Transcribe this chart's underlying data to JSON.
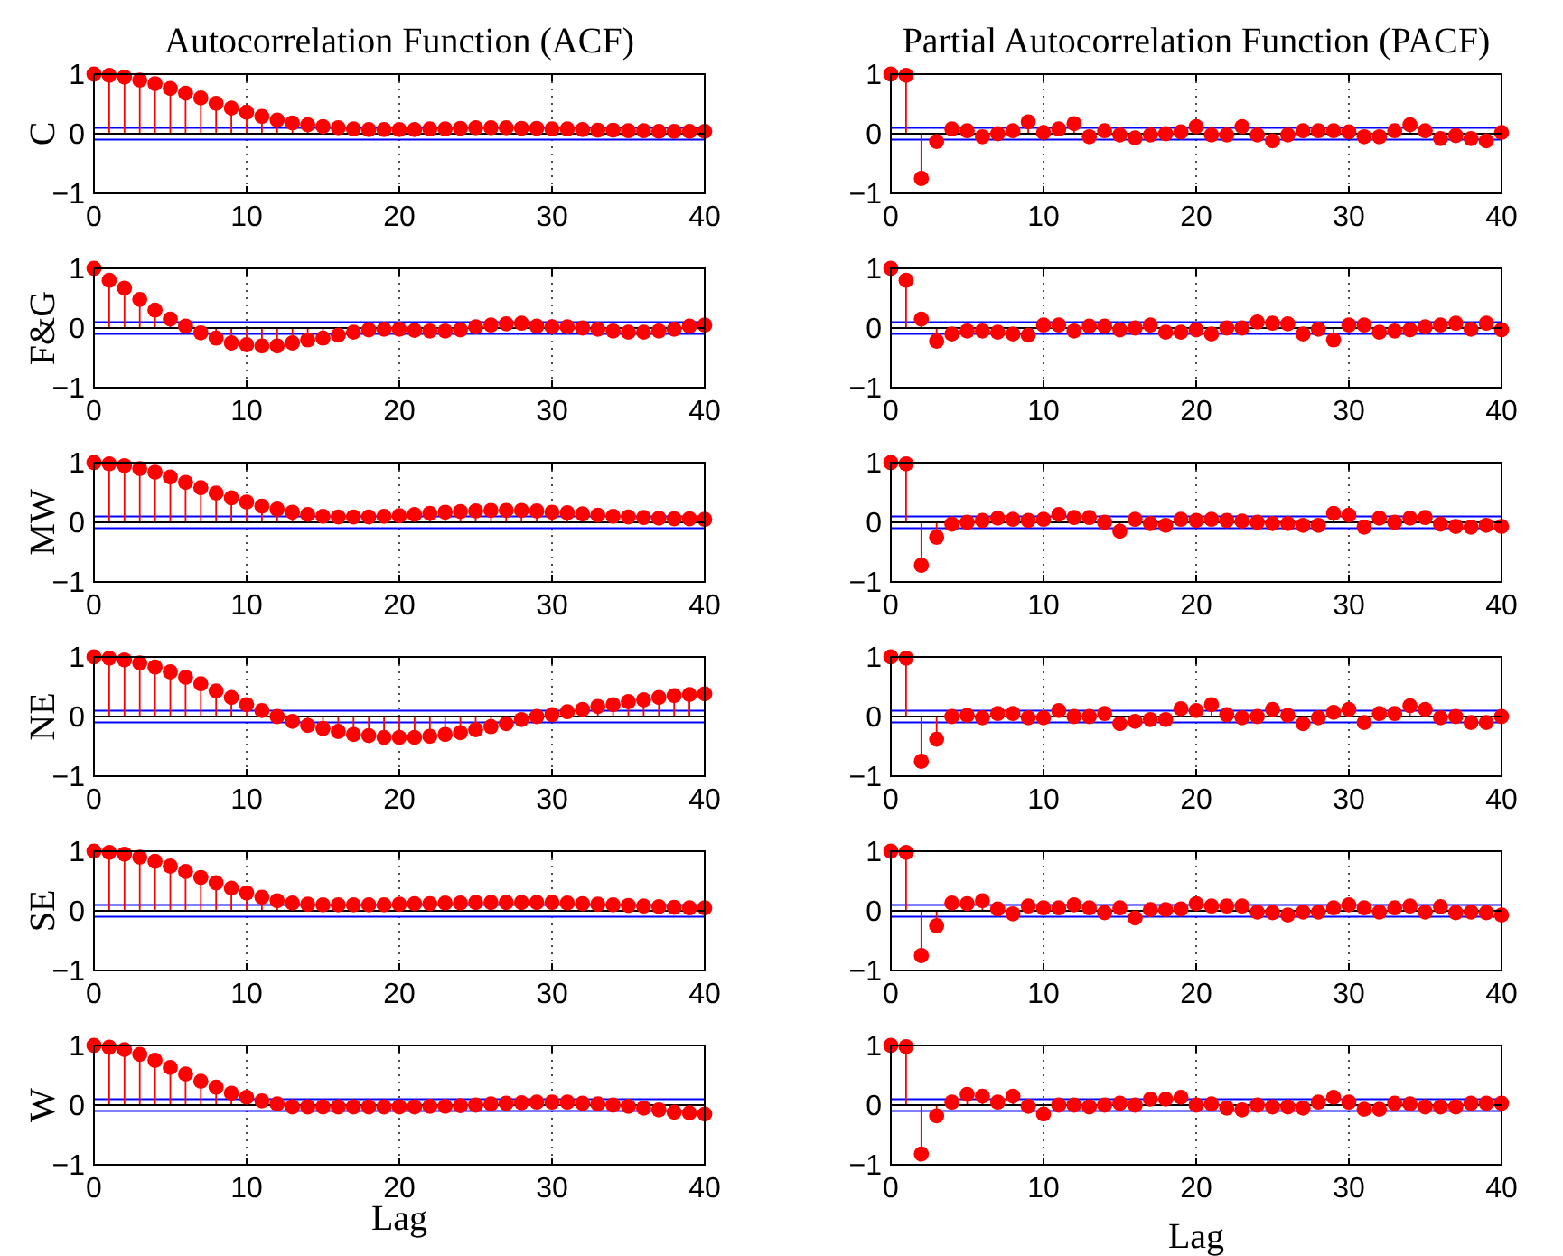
{
  "chart_data": [
    {
      "type": "lollipop",
      "title": "Autocorrelation Function (ACF)",
      "ylabel": "C",
      "x": [
        0,
        1,
        2,
        3,
        4,
        5,
        6,
        7,
        8,
        9,
        10,
        11,
        12,
        13,
        14,
        15,
        16,
        17,
        18,
        19,
        20,
        21,
        22,
        23,
        24,
        25,
        26,
        27,
        28,
        29,
        30,
        31,
        32,
        33,
        34,
        35,
        36,
        37,
        38,
        39,
        40
      ],
      "values": [
        1,
        0.98,
        0.95,
        0.9,
        0.84,
        0.76,
        0.68,
        0.6,
        0.51,
        0.43,
        0.36,
        0.29,
        0.23,
        0.18,
        0.15,
        0.12,
        0.1,
        0.08,
        0.07,
        0.07,
        0.07,
        0.07,
        0.08,
        0.08,
        0.09,
        0.1,
        0.1,
        0.1,
        0.09,
        0.09,
        0.08,
        0.08,
        0.07,
        0.06,
        0.06,
        0.05,
        0.05,
        0.04,
        0.04,
        0.04,
        0.04
      ],
      "color": "#ff0000",
      "xlim": [
        0,
        40
      ],
      "xticks": [
        0,
        10,
        20,
        30,
        40
      ],
      "ylim": [
        -1,
        1
      ],
      "yticks": [
        -1,
        0,
        1
      ],
      "grid": "x",
      "marker": "circle",
      "ref_lines": [
        {
          "axis": "y",
          "value": 0.1,
          "color": "#0000ff"
        },
        {
          "axis": "y",
          "value": -0.1,
          "color": "#0000ff"
        }
      ]
    },
    {
      "type": "lollipop",
      "title": "Partial Autocorrelation Function (PACF)",
      "x": [
        0,
        1,
        2,
        3,
        4,
        5,
        6,
        7,
        8,
        9,
        10,
        11,
        12,
        13,
        14,
        15,
        16,
        17,
        18,
        19,
        20,
        21,
        22,
        23,
        24,
        25,
        26,
        27,
        28,
        29,
        30,
        31,
        32,
        33,
        34,
        35,
        36,
        37,
        38,
        39,
        40
      ],
      "values": [
        1,
        0.98,
        -0.75,
        -0.13,
        0.08,
        0.05,
        -0.05,
        0,
        0.05,
        0.2,
        0.02,
        0.08,
        0.17,
        -0.05,
        0.05,
        -0.02,
        -0.07,
        -0.02,
        0,
        0.03,
        0.12,
        -0.02,
        -0.02,
        0.12,
        -0.02,
        -0.12,
        -0.02,
        0.05,
        0.05,
        0.05,
        0.03,
        -0.05,
        -0.05,
        0.05,
        0.15,
        0.05,
        -0.08,
        -0.03,
        -0.08,
        -0.12,
        0.02
      ],
      "color": "#ff0000",
      "xlim": [
        0,
        40
      ],
      "xticks": [
        0,
        10,
        20,
        30,
        40
      ],
      "ylim": [
        -1,
        1
      ],
      "yticks": [
        -1,
        0,
        1
      ],
      "grid": "x",
      "marker": "circle",
      "ref_lines": [
        {
          "axis": "y",
          "value": 0.1,
          "color": "#0000ff"
        },
        {
          "axis": "y",
          "value": -0.1,
          "color": "#0000ff"
        }
      ]
    },
    {
      "type": "lollipop",
      "ylabel": "F&G",
      "x": [
        0,
        1,
        2,
        3,
        4,
        5,
        6,
        7,
        8,
        9,
        10,
        11,
        12,
        13,
        14,
        15,
        16,
        17,
        18,
        19,
        20,
        21,
        22,
        23,
        24,
        25,
        26,
        27,
        28,
        29,
        30,
        31,
        32,
        33,
        34,
        35,
        36,
        37,
        38,
        39,
        40
      ],
      "values": [
        1,
        0.8,
        0.67,
        0.48,
        0.3,
        0.15,
        0.03,
        -0.08,
        -0.17,
        -0.25,
        -0.28,
        -0.3,
        -0.3,
        -0.25,
        -0.2,
        -0.17,
        -0.12,
        -0.07,
        -0.03,
        -0.02,
        -0.02,
        -0.04,
        -0.05,
        -0.05,
        -0.03,
        0.02,
        0.05,
        0.07,
        0.08,
        0.03,
        0.02,
        0.02,
        0,
        -0.02,
        -0.05,
        -0.07,
        -0.07,
        -0.05,
        -0.02,
        0.03,
        0.05
      ],
      "color": "#ff0000",
      "xlim": [
        0,
        40
      ],
      "xticks": [
        0,
        10,
        20,
        30,
        40
      ],
      "ylim": [
        -1,
        1
      ],
      "yticks": [
        -1,
        0,
        1
      ],
      "grid": "x",
      "marker": "circle",
      "ref_lines": [
        {
          "axis": "y",
          "value": 0.1,
          "color": "#0000ff"
        },
        {
          "axis": "y",
          "value": -0.1,
          "color": "#0000ff"
        }
      ]
    },
    {
      "type": "lollipop",
      "x": [
        0,
        1,
        2,
        3,
        4,
        5,
        6,
        7,
        8,
        9,
        10,
        11,
        12,
        13,
        14,
        15,
        16,
        17,
        18,
        19,
        20,
        21,
        22,
        23,
        24,
        25,
        26,
        27,
        28,
        29,
        30,
        31,
        32,
        33,
        34,
        35,
        36,
        37,
        38,
        39,
        40
      ],
      "values": [
        1,
        0.8,
        0.15,
        -0.22,
        -0.1,
        -0.05,
        -0.05,
        -0.07,
        -0.1,
        -0.12,
        0.05,
        0.05,
        -0.05,
        0.03,
        0.03,
        -0.03,
        0,
        0.05,
        -0.07,
        -0.07,
        -0.03,
        -0.1,
        0,
        0,
        0.1,
        0.08,
        0.07,
        -0.1,
        -0.02,
        -0.2,
        0.05,
        0.05,
        -0.07,
        -0.05,
        -0.03,
        0.02,
        0.05,
        0.08,
        -0.02,
        0.08,
        -0.03
      ],
      "color": "#ff0000",
      "xlim": [
        0,
        40
      ],
      "xticks": [
        0,
        10,
        20,
        30,
        40
      ],
      "ylim": [
        -1,
        1
      ],
      "yticks": [
        -1,
        0,
        1
      ],
      "grid": "x",
      "marker": "circle",
      "ref_lines": [
        {
          "axis": "y",
          "value": 0.1,
          "color": "#0000ff"
        },
        {
          "axis": "y",
          "value": -0.1,
          "color": "#0000ff"
        }
      ]
    },
    {
      "type": "lollipop",
      "ylabel": "MW",
      "x": [
        0,
        1,
        2,
        3,
        4,
        5,
        6,
        7,
        8,
        9,
        10,
        11,
        12,
        13,
        14,
        15,
        16,
        17,
        18,
        19,
        20,
        21,
        22,
        23,
        24,
        25,
        26,
        27,
        28,
        29,
        30,
        31,
        32,
        33,
        34,
        35,
        36,
        37,
        38,
        39,
        40
      ],
      "values": [
        1,
        0.98,
        0.95,
        0.9,
        0.84,
        0.76,
        0.67,
        0.58,
        0.49,
        0.41,
        0.34,
        0.27,
        0.22,
        0.17,
        0.13,
        0.1,
        0.09,
        0.09,
        0.09,
        0.1,
        0.11,
        0.13,
        0.15,
        0.17,
        0.18,
        0.19,
        0.2,
        0.2,
        0.2,
        0.19,
        0.17,
        0.16,
        0.14,
        0.12,
        0.1,
        0.09,
        0.08,
        0.07,
        0.06,
        0.06,
        0.05
      ],
      "color": "#ff0000",
      "xlim": [
        0,
        40
      ],
      "xticks": [
        0,
        10,
        20,
        30,
        40
      ],
      "ylim": [
        -1,
        1
      ],
      "yticks": [
        -1,
        0,
        1
      ],
      "grid": "x",
      "marker": "circle",
      "ref_lines": [
        {
          "axis": "y",
          "value": 0.1,
          "color": "#0000ff"
        },
        {
          "axis": "y",
          "value": -0.1,
          "color": "#0000ff"
        }
      ]
    },
    {
      "type": "lollipop",
      "x": [
        0,
        1,
        2,
        3,
        4,
        5,
        6,
        7,
        8,
        9,
        10,
        11,
        12,
        13,
        14,
        15,
        16,
        17,
        18,
        19,
        20,
        21,
        22,
        23,
        24,
        25,
        26,
        27,
        28,
        29,
        30,
        31,
        32,
        33,
        34,
        35,
        36,
        37,
        38,
        39,
        40
      ],
      "values": [
        1,
        0.98,
        -0.72,
        -0.25,
        -0.03,
        0,
        0.03,
        0.07,
        0.05,
        0.03,
        0.05,
        0.13,
        0.08,
        0.08,
        0,
        -0.15,
        0.05,
        -0.02,
        -0.05,
        0.05,
        0.03,
        0.05,
        0.03,
        0.02,
        0,
        -0.02,
        -0.02,
        -0.05,
        -0.05,
        0.15,
        0.12,
        -0.08,
        0.07,
        0,
        0.07,
        0.08,
        -0.03,
        -0.07,
        -0.08,
        -0.05,
        -0.07
      ],
      "color": "#ff0000",
      "xlim": [
        0,
        40
      ],
      "xticks": [
        0,
        10,
        20,
        30,
        40
      ],
      "ylim": [
        -1,
        1
      ],
      "yticks": [
        -1,
        0,
        1
      ],
      "grid": "x",
      "marker": "circle",
      "ref_lines": [
        {
          "axis": "y",
          "value": 0.1,
          "color": "#0000ff"
        },
        {
          "axis": "y",
          "value": -0.1,
          "color": "#0000ff"
        }
      ]
    },
    {
      "type": "lollipop",
      "ylabel": "NE",
      "x": [
        0,
        1,
        2,
        3,
        4,
        5,
        6,
        7,
        8,
        9,
        10,
        11,
        12,
        13,
        14,
        15,
        16,
        17,
        18,
        19,
        20,
        21,
        22,
        23,
        24,
        25,
        26,
        27,
        28,
        29,
        30,
        31,
        32,
        33,
        34,
        35,
        36,
        37,
        38,
        39,
        40
      ],
      "values": [
        1,
        0.98,
        0.95,
        0.9,
        0.83,
        0.75,
        0.66,
        0.55,
        0.43,
        0.32,
        0.2,
        0.1,
        0,
        -0.08,
        -0.15,
        -0.2,
        -0.25,
        -0.3,
        -0.32,
        -0.35,
        -0.35,
        -0.35,
        -0.33,
        -0.3,
        -0.27,
        -0.22,
        -0.17,
        -0.12,
        -0.05,
        0,
        0.03,
        0.08,
        0.12,
        0.17,
        0.2,
        0.25,
        0.28,
        0.32,
        0.35,
        0.37,
        0.38
      ],
      "color": "#ff0000",
      "xlim": [
        0,
        40
      ],
      "xticks": [
        0,
        10,
        20,
        30,
        40
      ],
      "ylim": [
        -1,
        1
      ],
      "yticks": [
        -1,
        0,
        1
      ],
      "grid": "x",
      "marker": "circle",
      "ref_lines": [
        {
          "axis": "y",
          "value": 0.1,
          "color": "#0000ff"
        },
        {
          "axis": "y",
          "value": -0.1,
          "color": "#0000ff"
        }
      ]
    },
    {
      "type": "lollipop",
      "x": [
        0,
        1,
        2,
        3,
        4,
        5,
        6,
        7,
        8,
        9,
        10,
        11,
        12,
        13,
        14,
        15,
        16,
        17,
        18,
        19,
        20,
        21,
        22,
        23,
        24,
        25,
        26,
        27,
        28,
        29,
        30,
        31,
        32,
        33,
        34,
        35,
        36,
        37,
        38,
        39,
        40
      ],
      "values": [
        1,
        0.98,
        -0.75,
        -0.38,
        0,
        0.02,
        -0.02,
        0.05,
        0.05,
        -0.02,
        -0.02,
        0.1,
        0,
        0,
        0.05,
        -0.12,
        -0.08,
        -0.05,
        -0.05,
        0.13,
        0.1,
        0.2,
        0.03,
        -0.02,
        0,
        0.12,
        0.02,
        -0.12,
        -0.02,
        0.07,
        0.12,
        -0.1,
        0.05,
        0.05,
        0.18,
        0.12,
        -0.02,
        0,
        -0.1,
        -0.1,
        0
      ],
      "color": "#ff0000",
      "xlim": [
        0,
        40
      ],
      "xticks": [
        0,
        10,
        20,
        30,
        40
      ],
      "ylim": [
        -1,
        1
      ],
      "yticks": [
        -1,
        0,
        1
      ],
      "grid": "x",
      "marker": "circle",
      "ref_lines": [
        {
          "axis": "y",
          "value": 0.1,
          "color": "#0000ff"
        },
        {
          "axis": "y",
          "value": -0.1,
          "color": "#0000ff"
        }
      ]
    },
    {
      "type": "lollipop",
      "ylabel": "SE",
      "x": [
        0,
        1,
        2,
        3,
        4,
        5,
        6,
        7,
        8,
        9,
        10,
        11,
        12,
        13,
        14,
        15,
        16,
        17,
        18,
        19,
        20,
        21,
        22,
        23,
        24,
        25,
        26,
        27,
        28,
        29,
        30,
        31,
        32,
        33,
        34,
        35,
        36,
        37,
        38,
        39,
        40
      ],
      "values": [
        1,
        0.98,
        0.95,
        0.9,
        0.83,
        0.75,
        0.66,
        0.56,
        0.47,
        0.38,
        0.3,
        0.23,
        0.17,
        0.13,
        0.11,
        0.1,
        0.1,
        0.1,
        0.1,
        0.1,
        0.11,
        0.12,
        0.12,
        0.13,
        0.13,
        0.14,
        0.14,
        0.14,
        0.14,
        0.14,
        0.14,
        0.13,
        0.12,
        0.11,
        0.1,
        0.09,
        0.08,
        0.07,
        0.06,
        0.05,
        0.05
      ],
      "color": "#ff0000",
      "xlim": [
        0,
        40
      ],
      "xticks": [
        0,
        10,
        20,
        30,
        40
      ],
      "ylim": [
        -1,
        1
      ],
      "yticks": [
        -1,
        0,
        1
      ],
      "grid": "x",
      "marker": "circle",
      "ref_lines": [
        {
          "axis": "y",
          "value": 0.1,
          "color": "#0000ff"
        },
        {
          "axis": "y",
          "value": -0.1,
          "color": "#0000ff"
        }
      ]
    },
    {
      "type": "lollipop",
      "x": [
        0,
        1,
        2,
        3,
        4,
        5,
        6,
        7,
        8,
        9,
        10,
        11,
        12,
        13,
        14,
        15,
        16,
        17,
        18,
        19,
        20,
        21,
        22,
        23,
        24,
        25,
        26,
        27,
        28,
        29,
        30,
        31,
        32,
        33,
        34,
        35,
        36,
        37,
        38,
        39,
        40
      ],
      "values": [
        1,
        0.98,
        -0.75,
        -0.25,
        0.13,
        0.12,
        0.17,
        0.03,
        -0.05,
        0.08,
        0.05,
        0.05,
        0.1,
        0.05,
        -0.03,
        0.05,
        -0.12,
        0.02,
        0.02,
        0.03,
        0.12,
        0.08,
        0.08,
        0.08,
        -0.02,
        -0.03,
        -0.07,
        -0.02,
        -0.02,
        0.05,
        0.1,
        0.05,
        -0.02,
        0.05,
        0.08,
        -0.02,
        0.07,
        -0.03,
        -0.02,
        -0.03,
        -0.07
      ],
      "color": "#ff0000",
      "xlim": [
        0,
        40
      ],
      "xticks": [
        0,
        10,
        20,
        30,
        40
      ],
      "ylim": [
        -1,
        1
      ],
      "yticks": [
        -1,
        0,
        1
      ],
      "grid": "x",
      "marker": "circle",
      "ref_lines": [
        {
          "axis": "y",
          "value": 0.1,
          "color": "#0000ff"
        },
        {
          "axis": "y",
          "value": -0.1,
          "color": "#0000ff"
        }
      ]
    },
    {
      "type": "lollipop",
      "ylabel": "W",
      "xlabel": "Lag",
      "x": [
        0,
        1,
        2,
        3,
        4,
        5,
        6,
        7,
        8,
        9,
        10,
        11,
        12,
        13,
        14,
        15,
        16,
        17,
        18,
        19,
        20,
        21,
        22,
        23,
        24,
        25,
        26,
        27,
        28,
        29,
        30,
        31,
        32,
        33,
        34,
        35,
        36,
        37,
        38,
        39,
        40
      ],
      "values": [
        1,
        0.97,
        0.93,
        0.85,
        0.75,
        0.63,
        0.52,
        0.4,
        0.3,
        0.2,
        0.13,
        0.07,
        0.02,
        -0.03,
        -0.03,
        -0.03,
        -0.03,
        -0.03,
        -0.03,
        -0.03,
        -0.03,
        -0.03,
        -0.02,
        -0.02,
        -0.01,
        0,
        0.02,
        0.03,
        0.04,
        0.05,
        0.05,
        0.05,
        0.03,
        0.02,
        0,
        -0.02,
        -0.05,
        -0.08,
        -0.12,
        -0.13,
        -0.15
      ],
      "color": "#ff0000",
      "xlim": [
        0,
        40
      ],
      "xticks": [
        0,
        10,
        20,
        30,
        40
      ],
      "ylim": [
        -1,
        1
      ],
      "yticks": [
        -1,
        0,
        1
      ],
      "grid": "x",
      "marker": "circle",
      "ref_lines": [
        {
          "axis": "y",
          "value": 0.1,
          "color": "#0000ff"
        },
        {
          "axis": "y",
          "value": -0.1,
          "color": "#0000ff"
        }
      ]
    },
    {
      "type": "lollipop",
      "xlabel": "Lag",
      "x": [
        0,
        1,
        2,
        3,
        4,
        5,
        6,
        7,
        8,
        9,
        10,
        11,
        12,
        13,
        14,
        15,
        16,
        17,
        18,
        19,
        20,
        21,
        22,
        23,
        24,
        25,
        26,
        27,
        28,
        29,
        30,
        31,
        32,
        33,
        34,
        35,
        36,
        37,
        38,
        39,
        40
      ],
      "values": [
        1,
        0.98,
        -0.82,
        -0.18,
        0.05,
        0.18,
        0.15,
        0.05,
        0.15,
        -0.02,
        -0.15,
        0,
        0,
        -0.03,
        0,
        0.03,
        0,
        0.1,
        0.1,
        0.13,
        0,
        0.02,
        -0.05,
        -0.08,
        0,
        -0.03,
        -0.03,
        -0.05,
        0.05,
        0.13,
        0.05,
        -0.07,
        -0.07,
        0.03,
        0.02,
        -0.03,
        -0.03,
        -0.03,
        0.03,
        0.03,
        0.03
      ],
      "color": "#ff0000",
      "xlim": [
        0,
        40
      ],
      "xticks": [
        0,
        10,
        20,
        30,
        40
      ],
      "ylim": [
        -1,
        1
      ],
      "yticks": [
        -1,
        0,
        1
      ],
      "grid": "x",
      "marker": "circle",
      "ref_lines": [
        {
          "axis": "y",
          "value": 0.1,
          "color": "#0000ff"
        },
        {
          "axis": "y",
          "value": -0.1,
          "color": "#0000ff"
        }
      ]
    }
  ]
}
